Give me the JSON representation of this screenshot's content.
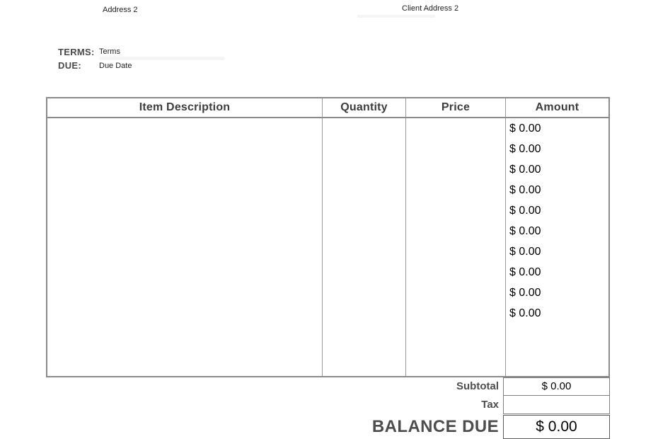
{
  "header": {
    "business_address_line2": "Address 2",
    "client_address_line2": "Client Address 2"
  },
  "meta": {
    "terms_label": "TERMS:",
    "terms_value": "Terms",
    "due_label": "DUE:",
    "due_value": "Due Date"
  },
  "table": {
    "headers": [
      "Item Description",
      "Quantity",
      "Price",
      "Amount"
    ],
    "rows": [
      {
        "description": "",
        "quantity": "",
        "price": "",
        "amount": "$ 0.00"
      },
      {
        "description": "",
        "quantity": "",
        "price": "",
        "amount": "$ 0.00"
      },
      {
        "description": "",
        "quantity": "",
        "price": "",
        "amount": "$ 0.00"
      },
      {
        "description": "",
        "quantity": "",
        "price": "",
        "amount": "$ 0.00"
      },
      {
        "description": "",
        "quantity": "",
        "price": "",
        "amount": "$ 0.00"
      },
      {
        "description": "",
        "quantity": "",
        "price": "",
        "amount": "$ 0.00"
      },
      {
        "description": "",
        "quantity": "",
        "price": "",
        "amount": "$ 0.00"
      },
      {
        "description": "",
        "quantity": "",
        "price": "",
        "amount": "$ 0.00"
      },
      {
        "description": "",
        "quantity": "",
        "price": "",
        "amount": "$ 0.00"
      },
      {
        "description": "",
        "quantity": "",
        "price": "",
        "amount": "$ 0.00"
      }
    ]
  },
  "totals": {
    "subtotal_label": "Subtotal",
    "subtotal_value": "$ 0.00",
    "tax_label": "Tax",
    "tax_value": "",
    "balance_label": "BALANCE DUE",
    "balance_value": "$ 0.00"
  },
  "colors": {
    "label_gray": "#4d4d4d",
    "header_text_gray": "#3d3d3d",
    "border_gray": "#8a8a8a",
    "divider_gray": "#9a9a9a",
    "value_black": "#000000"
  }
}
